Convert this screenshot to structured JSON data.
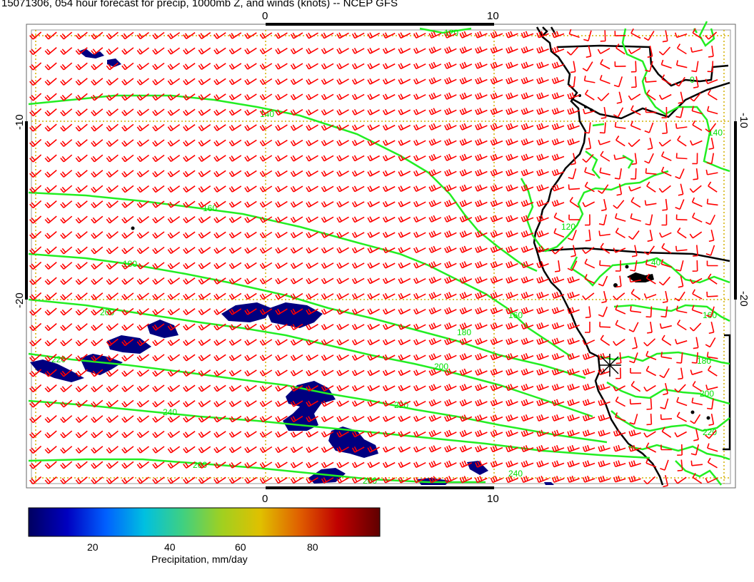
{
  "title": "15071306, 054 hour forecast for precip, 1000mb Z, and winds (knots) -- NCEP GFS",
  "axes": {
    "top_ticks": [
      "0",
      "10"
    ],
    "bottom_ticks": [
      "0",
      "10"
    ],
    "left_ticks": [
      "-10",
      "-20"
    ],
    "right_ticks": [
      "-10",
      "-20"
    ]
  },
  "contour_labels": [
    "120",
    "140",
    "160",
    "180",
    "200",
    "220",
    "240",
    "260",
    "120",
    "40",
    "160",
    "180",
    "200",
    "220",
    "140",
    "160",
    "180",
    "200",
    "220",
    "240",
    "260",
    "0"
  ],
  "colorbar": {
    "ticks": [
      "20",
      "40",
      "60",
      "80"
    ],
    "label": "Precipitation, mm/day",
    "colors": [
      "#000060",
      "#0000c0",
      "#0060ff",
      "#00c0e0",
      "#40d080",
      "#a0d020",
      "#e0c000",
      "#e06000",
      "#c00000",
      "#600000"
    ]
  },
  "colors": {
    "wind_barbs": "#ff0000",
    "height_contours": "#22ee22",
    "precip": "#000080",
    "coastline": "#000000",
    "grid": "#d4b000"
  },
  "legend_icons": [
    "wind-barb-icon",
    "cyclone-marker-icon"
  ]
}
